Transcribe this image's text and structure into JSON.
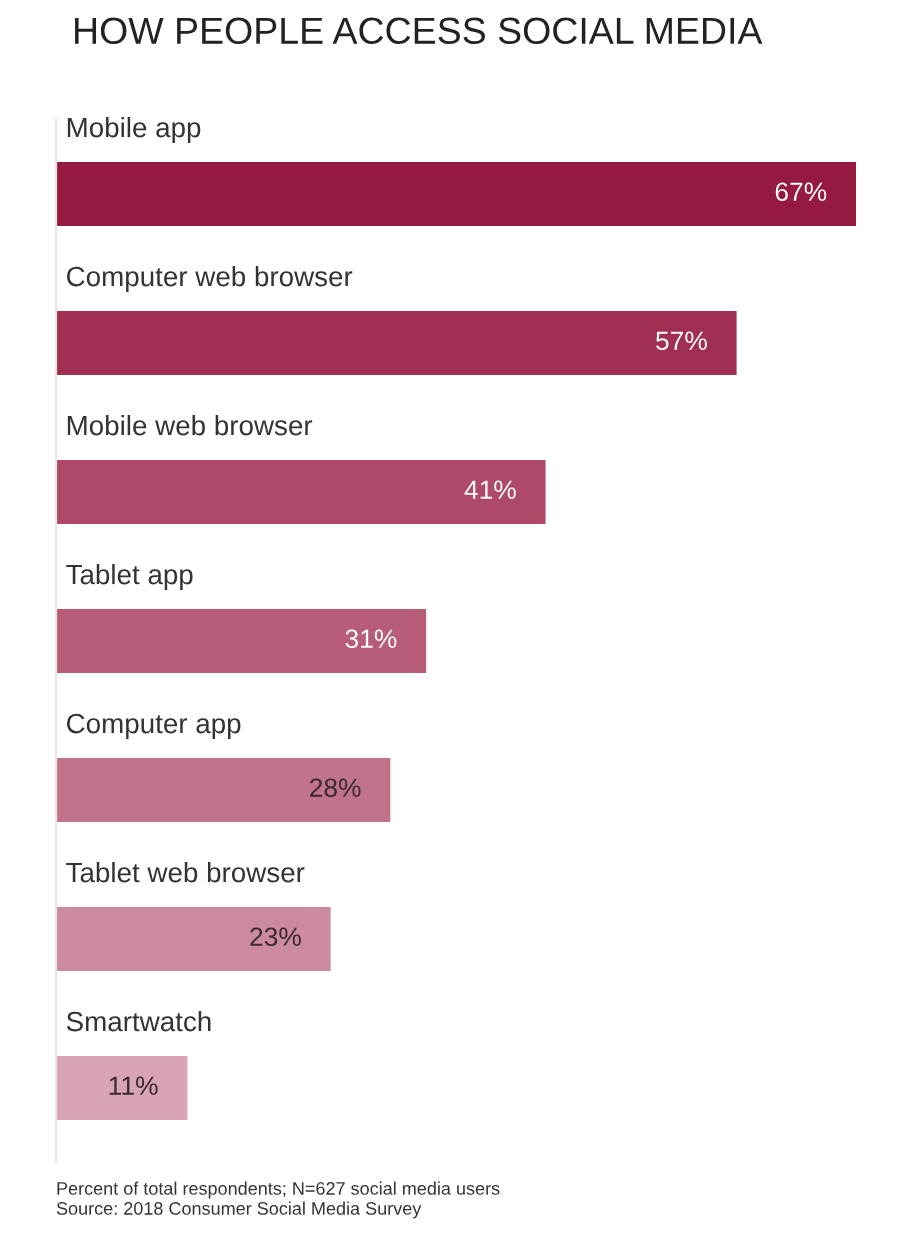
{
  "chart_data": {
    "type": "bar",
    "orientation": "horizontal",
    "title": "HOW PEOPLE ACCESS SOCIAL MEDIA",
    "categories": [
      "Mobile app",
      "Computer web browser",
      "Mobile web browser",
      "Tablet app",
      "Computer app",
      "Tablet web browser",
      "Smartwatch"
    ],
    "values": [
      67,
      57,
      41,
      31,
      28,
      23,
      11
    ],
    "value_labels": [
      "67%",
      "57%",
      "41%",
      "31%",
      "28%",
      "23%",
      "11%"
    ],
    "colors": [
      "#961a3f",
      "#a12f52",
      "#ae4a67",
      "#b85d78",
      "#c07389",
      "#cc8a9f",
      "#d8a3b4"
    ],
    "annotations": [
      "Percent of total respondents; N=627 social media users",
      "Source: 2018 Consumer Social Media Survey"
    ],
    "legend": false
  }
}
